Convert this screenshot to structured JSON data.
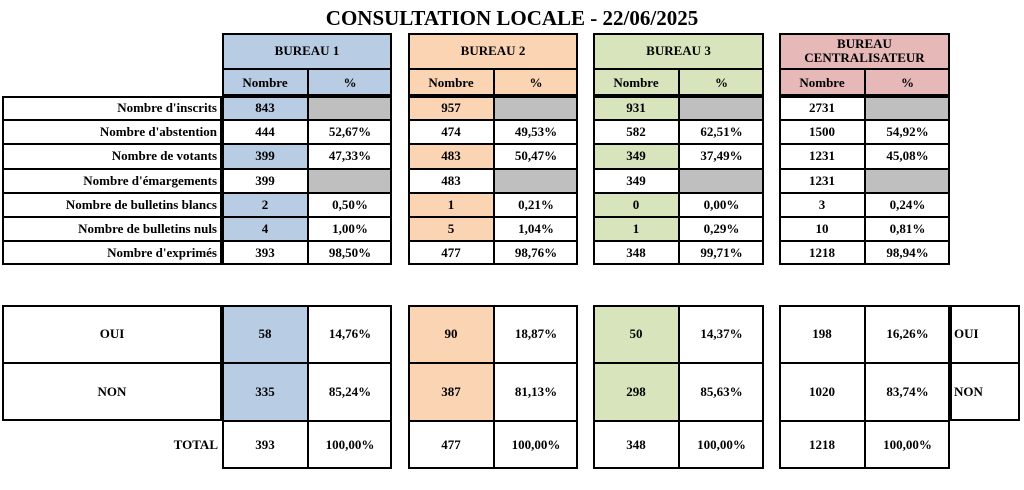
{
  "title": "CONSULTATION LOCALE - 22/06/2025",
  "colors": {
    "bureau1": "#b8cce4",
    "bureau2": "#fbd4b4",
    "bureau3": "#d7e4bc",
    "centralisateur": "#e6b8b7",
    "empty": "#bfbfbf"
  },
  "bureaus": [
    {
      "name": "BUREAU 1",
      "col_nombre": "Nombre",
      "col_pct": "%"
    },
    {
      "name": "BUREAU 2",
      "col_nombre": "Nombre",
      "col_pct": "%"
    },
    {
      "name": "BUREAU 3",
      "col_nombre": "Nombre",
      "col_pct": "%"
    },
    {
      "name": "BUREAU CENTRALISATEUR",
      "col_nombre": "Nombre",
      "col_pct": "%"
    }
  ],
  "stats_rows": [
    {
      "label": "Nombre d'inscrits",
      "values": [
        [
          "843",
          ""
        ],
        [
          "957",
          ""
        ],
        [
          "931",
          ""
        ],
        [
          "2731",
          ""
        ]
      ]
    },
    {
      "label": "Nombre d'abstention",
      "values": [
        [
          "444",
          "52,67%"
        ],
        [
          "474",
          "49,53%"
        ],
        [
          "582",
          "62,51%"
        ],
        [
          "1500",
          "54,92%"
        ]
      ]
    },
    {
      "label": "Nombre de votants",
      "values": [
        [
          "399",
          "47,33%"
        ],
        [
          "483",
          "50,47%"
        ],
        [
          "349",
          "37,49%"
        ],
        [
          "1231",
          "45,08%"
        ]
      ]
    },
    {
      "label": "Nombre d'émargements",
      "values": [
        [
          "399",
          ""
        ],
        [
          "483",
          ""
        ],
        [
          "349",
          ""
        ],
        [
          "1231",
          ""
        ]
      ]
    },
    {
      "label": "Nombre de bulletins blancs",
      "values": [
        [
          "2",
          "0,50%"
        ],
        [
          "1",
          "0,21%"
        ],
        [
          "0",
          "0,00%"
        ],
        [
          "3",
          "0,24%"
        ]
      ]
    },
    {
      "label": "Nombre de bulletins nuls",
      "values": [
        [
          "4",
          "1,00%"
        ],
        [
          "5",
          "1,04%"
        ],
        [
          "1",
          "0,29%"
        ],
        [
          "10",
          "0,81%"
        ]
      ]
    },
    {
      "label": "Nombre d'exprimés",
      "values": [
        [
          "393",
          "98,50%"
        ],
        [
          "477",
          "98,76%"
        ],
        [
          "348",
          "99,71%"
        ],
        [
          "1218",
          "98,94%"
        ]
      ]
    }
  ],
  "results_rows": [
    {
      "label": "OUI",
      "right_label": "OUI",
      "values": [
        [
          "58",
          "14,76%"
        ],
        [
          "90",
          "18,87%"
        ],
        [
          "50",
          "14,37%"
        ],
        [
          "198",
          "16,26%"
        ]
      ]
    },
    {
      "label": "NON",
      "right_label": "NON",
      "values": [
        [
          "335",
          "85,24%"
        ],
        [
          "387",
          "81,13%"
        ],
        [
          "298",
          "85,63%"
        ],
        [
          "1020",
          "83,74%"
        ]
      ]
    }
  ],
  "total_row": {
    "label": "TOTAL",
    "values": [
      [
        "393",
        "100,00%"
      ],
      [
        "477",
        "100,00%"
      ],
      [
        "348",
        "100,00%"
      ],
      [
        "1218",
        "100,00%"
      ]
    ]
  }
}
